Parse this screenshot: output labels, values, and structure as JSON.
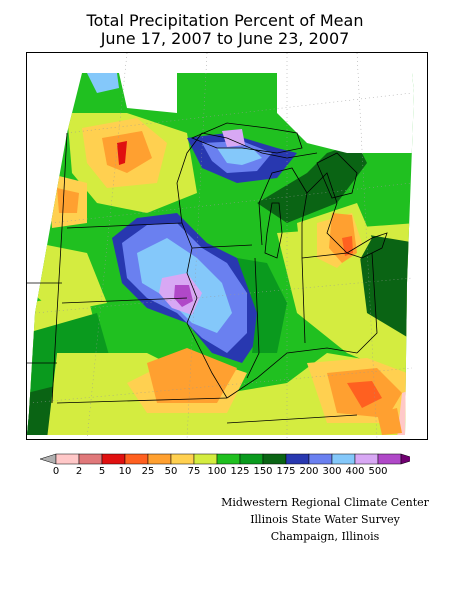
{
  "title": {
    "line1": "Total Precipitation Percent of Mean",
    "line2": "June 17, 2007 to June 23, 2007"
  },
  "map": {
    "region": "Midwestern United States",
    "states_visible": [
      "Minnesota",
      "Iowa",
      "Missouri",
      "Wisconsin",
      "Illinois",
      "Michigan",
      "Indiana",
      "Ohio",
      "Kentucky"
    ],
    "wettest_area": "Iowa / western Illinois (300-400% of mean)"
  },
  "legend": {
    "ticks": [
      "0",
      "2",
      "5",
      "10",
      "25",
      "50",
      "75",
      "100",
      "125",
      "150",
      "175",
      "200",
      "300",
      "400",
      "500"
    ],
    "colors": [
      "#ffc8c8",
      "#e0787a",
      "#e01010",
      "#ff6020",
      "#ffa030",
      "#ffd050",
      "#d4ec40",
      "#20c020",
      "#0a9a1e",
      "#0a6414",
      "#2838b0",
      "#6a80f0",
      "#84c8fa",
      "#d8a8f4",
      "#b048c8"
    ],
    "low_cap": "#b0b0b0",
    "high_cap": "#700070"
  },
  "credits": {
    "line1": "Midwestern Regional Climate Center",
    "line2": "Illinois State Water Survey",
    "line3": "Champaign, Illinois"
  }
}
